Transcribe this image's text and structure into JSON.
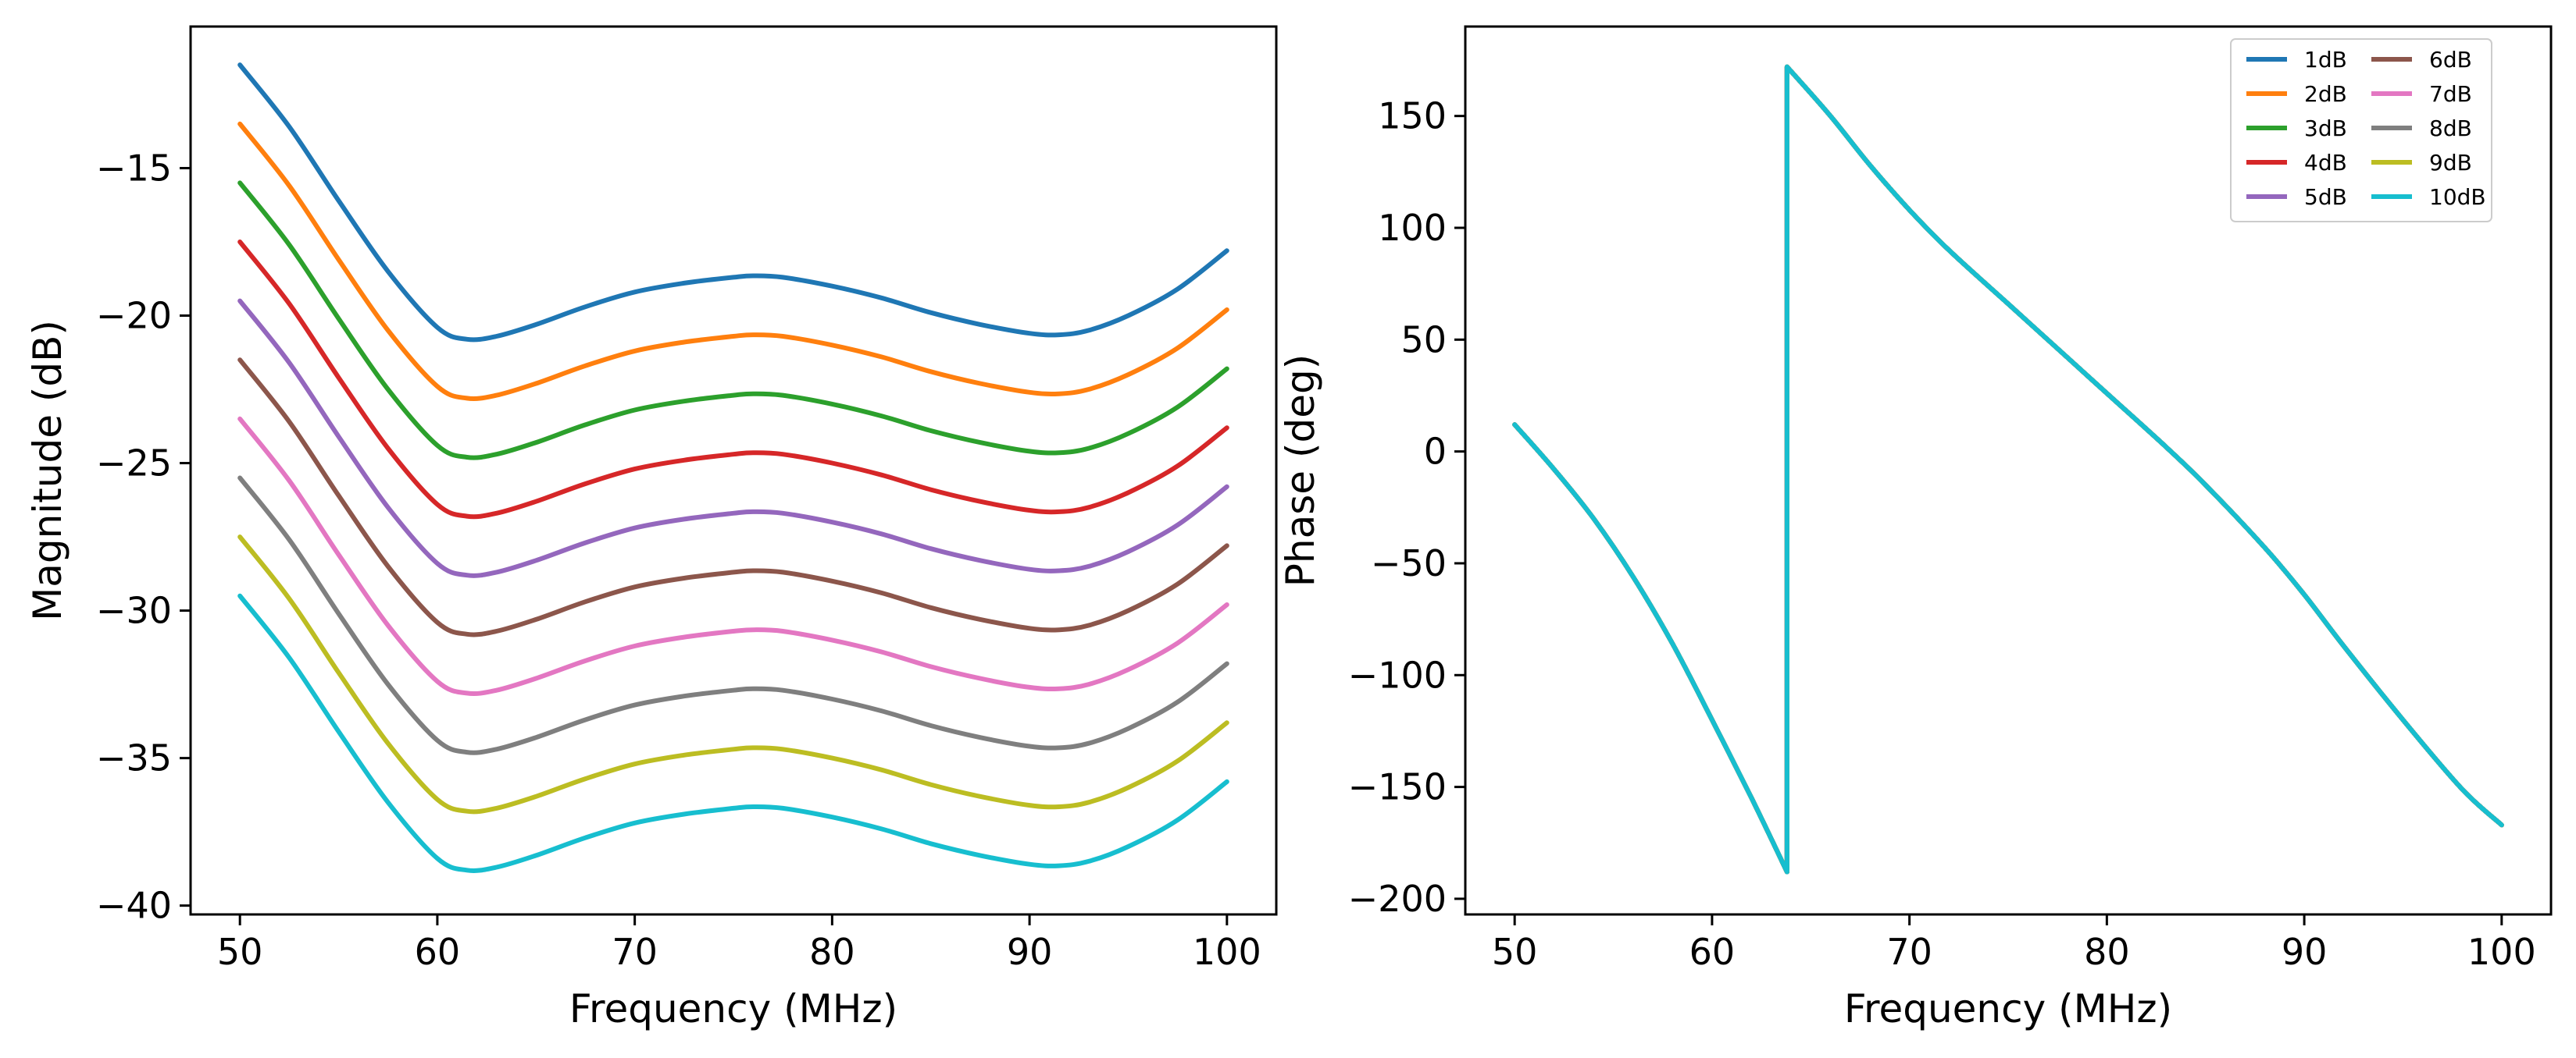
{
  "chart_data": [
    {
      "type": "line",
      "name": "magnitude",
      "xlabel": "Frequency (MHz)",
      "ylabel": "Magnitude (dB)",
      "xlim": [
        47.5,
        102.5
      ],
      "ylim": [
        -40.3,
        -10.2
      ],
      "xticks": [
        50,
        60,
        70,
        80,
        90,
        100
      ],
      "yticks": [
        -40,
        -35,
        -30,
        -25,
        -20,
        -15
      ],
      "xtick_labels": [
        "50",
        "60",
        "70",
        "80",
        "90",
        "100"
      ],
      "ytick_labels": [
        "−40",
        "−35",
        "−30",
        "−25",
        "−20",
        "−15"
      ],
      "x": [
        50,
        52.5,
        55,
        57.5,
        60,
        61.5,
        63,
        65,
        67.5,
        70,
        72.5,
        75,
        76,
        77.5,
        80,
        82.5,
        85,
        87.5,
        90,
        91.5,
        93,
        95,
        97.5,
        100
      ],
      "base_curve": [
        -11.5,
        -13.6,
        -16.1,
        -18.5,
        -20.4,
        -20.8,
        -20.7,
        -20.3,
        -19.7,
        -19.2,
        -18.9,
        -18.7,
        -18.65,
        -18.7,
        -19.0,
        -19.4,
        -19.9,
        -20.3,
        -20.6,
        -20.65,
        -20.5,
        -20.0,
        -19.1,
        -17.8
      ],
      "series_offsets": [
        0,
        -2,
        -4,
        -6,
        -8,
        -10,
        -12,
        -14,
        -16,
        -18
      ]
    },
    {
      "type": "line",
      "name": "phase",
      "xlabel": "Frequency (MHz)",
      "ylabel": "Phase (deg)",
      "xlim": [
        47.5,
        102.5
      ],
      "ylim": [
        -207,
        190
      ],
      "xticks": [
        50,
        60,
        70,
        80,
        90,
        100
      ],
      "yticks": [
        -200,
        -150,
        -100,
        -50,
        0,
        50,
        100,
        150
      ],
      "xtick_labels": [
        "50",
        "60",
        "70",
        "80",
        "90",
        "100"
      ],
      "ytick_labels": [
        "−200",
        "−150",
        "−100",
        "−50",
        "0",
        "50",
        "100",
        "150"
      ],
      "x": [
        50,
        52,
        54,
        56,
        58,
        60,
        62,
        63.8,
        63.8,
        66,
        68,
        70,
        72,
        75,
        78,
        80,
        83,
        85,
        88,
        90,
        92,
        95,
        98,
        100
      ],
      "y": [
        12,
        -8,
        -30,
        -56,
        -86,
        -120,
        -155,
        -188,
        172,
        150,
        128,
        108,
        90,
        66,
        42,
        26,
        2,
        -15,
        -43,
        -64,
        -87,
        -120,
        -151,
        -167
      ],
      "legend": {
        "position": "upper right",
        "ncol": 2,
        "entries": [
          "1dB",
          "2dB",
          "3dB",
          "4dB",
          "5dB",
          "6dB",
          "7dB",
          "8dB",
          "9dB",
          "10dB"
        ]
      }
    }
  ],
  "colors": [
    "#1f77b4",
    "#ff7f0e",
    "#2ca02c",
    "#d62728",
    "#9467bd",
    "#8c564b",
    "#e377c2",
    "#7f7f7f",
    "#bcbd22",
    "#17becf"
  ]
}
